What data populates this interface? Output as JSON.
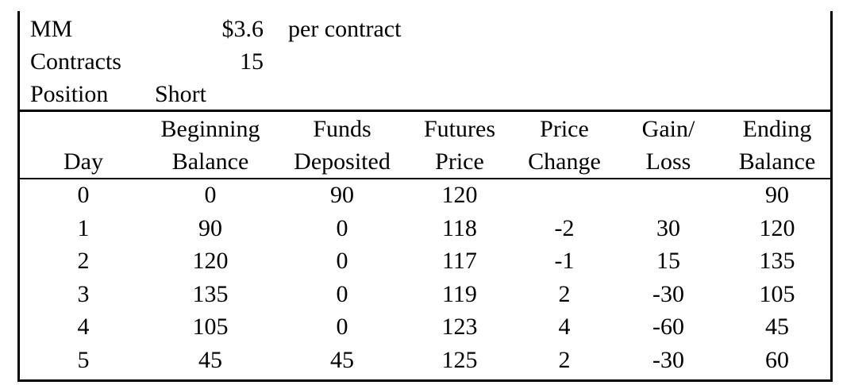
{
  "header": {
    "mm": {
      "label": "MM",
      "value": "$3.6",
      "unit": "per contract"
    },
    "contracts": {
      "label": "Contracts",
      "value": "15"
    },
    "position": {
      "label": "Position",
      "value": "Short"
    }
  },
  "table": {
    "columns": [
      {
        "line1": "",
        "line2": "Day"
      },
      {
        "line1": "Beginning",
        "line2": "Balance"
      },
      {
        "line1": "Funds",
        "line2": "Deposited"
      },
      {
        "line1": "Futures",
        "line2": "Price"
      },
      {
        "line1": "Price",
        "line2": "Change"
      },
      {
        "line1": "Gain/",
        "line2": "Loss"
      },
      {
        "line1": "Ending",
        "line2": "Balance"
      }
    ],
    "rows": [
      [
        "0",
        "0",
        "90",
        "120",
        "",
        "",
        "90"
      ],
      [
        "1",
        "90",
        "0",
        "118",
        "-2",
        "30",
        "120"
      ],
      [
        "2",
        "120",
        "0",
        "117",
        "-1",
        "15",
        "135"
      ],
      [
        "3",
        "135",
        "0",
        "119",
        "2",
        "-30",
        "105"
      ],
      [
        "4",
        "105",
        "0",
        "123",
        "4",
        "-60",
        "45"
      ],
      [
        "5",
        "45",
        "45",
        "125",
        "2",
        "-30",
        "60"
      ]
    ]
  }
}
